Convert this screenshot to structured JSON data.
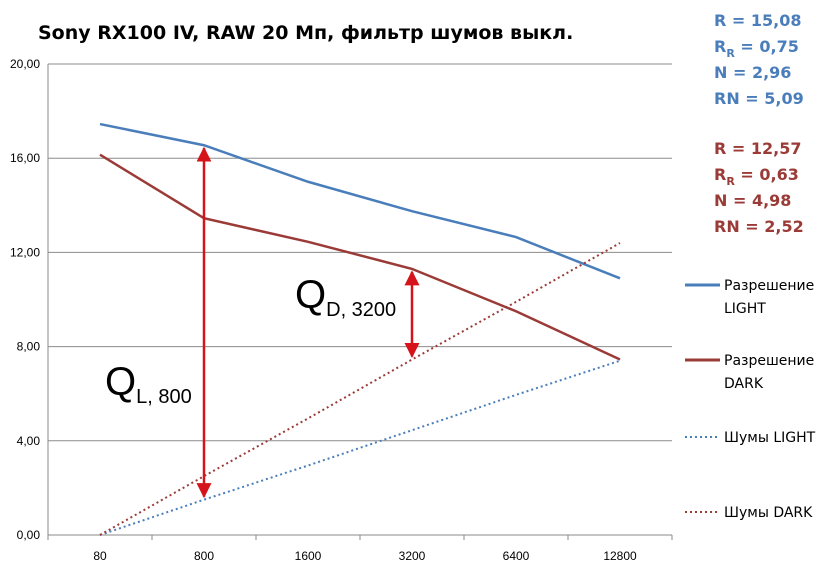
{
  "chart_data": {
    "type": "line",
    "title": "Sony RX100 IV, RAW 20 Мп, фильтр шумов выкл.",
    "xlabel": "",
    "ylabel": "",
    "categories": [
      "80",
      "800",
      "1600",
      "3200",
      "6400",
      "12800"
    ],
    "ylim": [
      0,
      20
    ],
    "yticks": [
      "0,00",
      "4,00",
      "8,00",
      "12,00",
      "16,00",
      "20,00"
    ],
    "grid": true,
    "legend_position": "right",
    "series": [
      {
        "name": "Разрешение LIGHT",
        "values": [
          17.45,
          16.55,
          15.0,
          13.75,
          12.65,
          10.9
        ],
        "color": "#4a7ebb",
        "style": "solid"
      },
      {
        "name": "Разрешение DARK",
        "values": [
          16.15,
          13.45,
          12.45,
          11.3,
          9.5,
          7.45
        ],
        "color": "#9b3b37",
        "style": "solid"
      },
      {
        "name": "Шумы LIGHT",
        "values": [
          0.0,
          1.5,
          2.95,
          4.45,
          5.95,
          7.4
        ],
        "color": "#4a7ebb",
        "style": "dotted"
      },
      {
        "name": "Шумы DARK",
        "values": [
          0.0,
          2.5,
          4.95,
          7.45,
          9.9,
          12.4
        ],
        "color": "#9b3b37",
        "style": "dotted"
      }
    ],
    "annotations": [
      {
        "label_main": "Q",
        "label_sub": "L, 800",
        "category": "800",
        "from": 16.55,
        "to": 1.5
      },
      {
        "label_main": "Q",
        "label_sub": "D, 3200",
        "category": "3200",
        "from": 11.3,
        "to": 7.45
      }
    ],
    "stats": [
      {
        "color": "#4a7ebb",
        "lines": [
          {
            "main": "R = 15,08",
            "sub": "",
            "rest": ""
          },
          {
            "main": "R",
            "sub": "R",
            "rest": " = 0,75"
          },
          {
            "main": "N = 2,96",
            "sub": "",
            "rest": ""
          },
          {
            "main": "RN = 5,09",
            "sub": "",
            "rest": ""
          }
        ]
      },
      {
        "color": "#9b3b37",
        "lines": [
          {
            "main": "R = 12,57",
            "sub": "",
            "rest": ""
          },
          {
            "main": "R",
            "sub": "R",
            "rest": " = 0,63"
          },
          {
            "main": "N = 4,98",
            "sub": "",
            "rest": ""
          },
          {
            "main": "RN = 2,52",
            "sub": "",
            "rest": ""
          }
        ]
      }
    ],
    "legend": [
      {
        "line1": "Разрешение",
        "line2": "LIGHT",
        "color": "#4a7ebb",
        "style": "solid"
      },
      {
        "line1": "Разрешение",
        "line2": "DARK",
        "color": "#9b3b37",
        "style": "solid"
      },
      {
        "line1": "Шумы LIGHT",
        "line2": "",
        "color": "#4a7ebb",
        "style": "dotted"
      },
      {
        "line1": "Шумы DARK",
        "line2": "",
        "color": "#9b3b37",
        "style": "dotted"
      }
    ],
    "arrow_color": "#d4131a"
  }
}
